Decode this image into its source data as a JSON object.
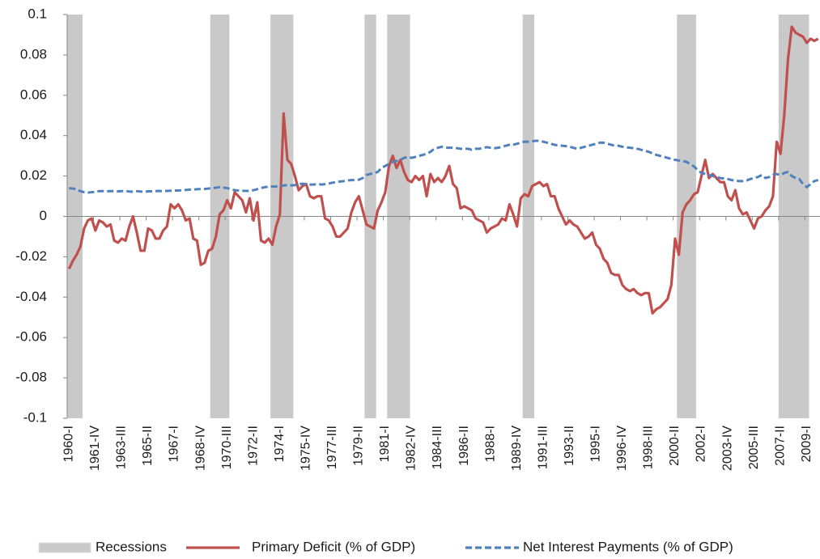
{
  "chart_data": {
    "type": "line",
    "categories": [
      "1960-I",
      null,
      null,
      null,
      null,
      null,
      null,
      "1961-IV",
      null,
      null,
      null,
      null,
      null,
      null,
      "1963-III",
      null,
      null,
      null,
      null,
      null,
      null,
      "1965-II",
      null,
      null,
      null,
      null,
      null,
      null,
      "1967-I",
      null,
      null,
      null,
      null,
      null,
      null,
      "1968-IV",
      null,
      null,
      null,
      null,
      null,
      null,
      "1970-III",
      null,
      null,
      null,
      null,
      null,
      null,
      "1972-II",
      null,
      null,
      null,
      null,
      null,
      null,
      "1974-I",
      null,
      null,
      null,
      null,
      null,
      null,
      "1975-IV",
      null,
      null,
      null,
      null,
      null,
      null,
      "1977-III",
      null,
      null,
      null,
      null,
      null,
      null,
      "1979-II",
      null,
      null,
      null,
      null,
      null,
      null,
      "1981-I",
      null,
      null,
      null,
      null,
      null,
      null,
      "1982-IV",
      null,
      null,
      null,
      null,
      null,
      null,
      "1984-III",
      null,
      null,
      null,
      null,
      null,
      null,
      "1986-II",
      null,
      null,
      null,
      null,
      null,
      null,
      "1988-I",
      null,
      null,
      null,
      null,
      null,
      null,
      "1989-IV",
      null,
      null,
      null,
      null,
      null,
      null,
      "1991-III",
      null,
      null,
      null,
      null,
      null,
      null,
      "1993-II",
      null,
      null,
      null,
      null,
      null,
      null,
      "1995-I",
      null,
      null,
      null,
      null,
      null,
      null,
      "1996-IV",
      null,
      null,
      null,
      null,
      null,
      null,
      "1998-III",
      null,
      null,
      null,
      null,
      null,
      null,
      "2000-II",
      null,
      null,
      null,
      null,
      null,
      null,
      "2002-I",
      null,
      null,
      null,
      null,
      null,
      null,
      "2003-IV",
      null,
      null,
      null,
      null,
      null,
      null,
      "2005-III",
      null,
      null,
      null,
      null,
      null,
      null,
      "2007-II",
      null,
      null,
      null,
      null,
      null,
      null,
      "2009-I",
      null,
      null,
      null
    ],
    "series": [
      {
        "name": "Recessions",
        "type": "bar",
        "color": "#c9c9c9",
        "values": [
          0.1,
          0.1,
          0.1,
          0.1,
          null,
          null,
          null,
          null,
          null,
          null,
          null,
          null,
          null,
          null,
          null,
          null,
          null,
          null,
          null,
          null,
          null,
          null,
          null,
          null,
          null,
          null,
          null,
          null,
          null,
          null,
          null,
          null,
          null,
          null,
          null,
          null,
          null,
          null,
          0.1,
          0.1,
          0.1,
          0.1,
          0.1,
          null,
          null,
          null,
          null,
          null,
          null,
          null,
          null,
          null,
          null,
          null,
          0.1,
          0.1,
          0.1,
          0.1,
          0.1,
          0.1,
          null,
          null,
          null,
          null,
          null,
          null,
          null,
          null,
          null,
          null,
          null,
          null,
          null,
          null,
          null,
          null,
          null,
          null,
          null,
          0.1,
          0.1,
          0.1,
          null,
          null,
          null,
          0.1,
          0.1,
          0.1,
          0.1,
          0.1,
          0.1,
          null,
          null,
          null,
          null,
          null,
          null,
          null,
          null,
          null,
          null,
          null,
          null,
          null,
          null,
          null,
          null,
          null,
          null,
          null,
          null,
          null,
          null,
          null,
          null,
          null,
          null,
          null,
          null,
          null,
          null,
          0.1,
          0.1,
          0.1,
          null,
          null,
          null,
          null,
          null,
          null,
          null,
          null,
          null,
          null,
          null,
          null,
          null,
          null,
          null,
          null,
          null,
          null,
          null,
          null,
          null,
          null,
          null,
          null,
          null,
          null,
          null,
          null,
          null,
          null,
          null,
          null,
          null,
          null,
          null,
          null,
          null,
          null,
          0.1,
          0.1,
          0.1,
          0.1,
          0.1,
          null,
          null,
          null,
          null,
          null,
          null,
          null,
          null,
          null,
          null,
          null,
          null,
          null,
          null,
          null,
          null,
          null,
          null,
          null,
          null,
          null,
          null,
          0.1,
          0.1,
          0.1,
          0.1,
          0.1,
          0.1,
          0.1,
          0.1,
          null,
          null,
          null
        ]
      },
      {
        "name": "Primary Deficit (% of GDP)",
        "type": "line",
        "color": "#c0504d",
        "dashed": false,
        "values": [
          -0.026,
          -0.022,
          -0.019,
          -0.015,
          -0.006,
          -0.002,
          -0.001,
          -0.007,
          -0.002,
          -0.003,
          -0.005,
          -0.004,
          -0.012,
          -0.013,
          -0.011,
          -0.012,
          -0.005,
          0,
          -0.008,
          -0.017,
          -0.017,
          -0.006,
          -0.007,
          -0.011,
          -0.011,
          -0.007,
          -0.005,
          0.006,
          0.004,
          0.006,
          0.003,
          -0.002,
          -0.001,
          -0.011,
          -0.012,
          -0.024,
          -0.023,
          -0.017,
          -0.016,
          -0.01,
          0.001,
          0.003,
          0.008,
          0.004,
          0.012,
          0.01,
          0.008,
          0.002,
          0.009,
          -0.002,
          0.007,
          -0.012,
          -0.013,
          -0.011,
          -0.014,
          -0.005,
          0.001,
          0.051,
          0.028,
          0.026,
          0.02,
          0.013,
          0.015,
          0.016,
          0.01,
          0.009,
          0.01,
          0.01,
          -0.001,
          -0.002,
          -0.005,
          -0.01,
          -0.01,
          -0.008,
          -0.006,
          0.002,
          0.007,
          0.01,
          0.003,
          -0.004,
          -0.005,
          -0.006,
          0.003,
          0.007,
          0.012,
          0.025,
          0.03,
          0.024,
          0.028,
          0.022,
          0.018,
          0.017,
          0.02,
          0.018,
          0.02,
          0.01,
          0.021,
          0.017,
          0.019,
          0.017,
          0.02,
          0.025,
          0.016,
          0.014,
          0.004,
          0.005,
          0.004,
          0.003,
          -0.001,
          -0.002,
          -0.003,
          -0.008,
          -0.006,
          -0.005,
          -0.004,
          -0.001,
          -0.002,
          0.006,
          0.001,
          -0.005,
          0.009,
          0.011,
          0.01,
          0.015,
          0.016,
          0.017,
          0.015,
          0.016,
          0.01,
          0.01,
          0.004,
          0,
          -0.004,
          -0.002,
          -0.004,
          -0.005,
          -0.008,
          -0.011,
          -0.01,
          -0.008,
          -0.014,
          -0.016,
          -0.021,
          -0.023,
          -0.028,
          -0.029,
          -0.029,
          -0.034,
          -0.036,
          -0.037,
          -0.036,
          -0.038,
          -0.039,
          -0.038,
          -0.038,
          -0.048,
          -0.046,
          -0.045,
          -0.043,
          -0.041,
          -0.034,
          -0.011,
          -0.019,
          0.002,
          0.006,
          0.008,
          0.011,
          0.012,
          0.02,
          0.028,
          0.019,
          0.021,
          0.019,
          0.017,
          0.017,
          0.01,
          0.008,
          0.013,
          0.004,
          0.001,
          0.002,
          -0.002,
          -0.006,
          -0.001,
          0,
          0.003,
          0.005,
          0.01,
          0.037,
          0.031,
          0.05,
          0.078,
          0.094,
          0.091,
          0.09,
          0.089,
          0.086,
          0.088,
          0.087,
          0.088
        ]
      },
      {
        "name": "Net Interest Payments (% of GDP)",
        "type": "line",
        "color": "#4f81bd",
        "dashed": true,
        "values": [
          0.014,
          0.0138,
          0.0135,
          0.0125,
          0.012,
          0.0118,
          0.012,
          0.0122,
          0.0125,
          0.0125,
          0.0124,
          0.0125,
          0.0125,
          0.0124,
          0.0125,
          0.0127,
          0.0123,
          0.0122,
          0.0125,
          0.0123,
          0.0122,
          0.0124,
          0.0124,
          0.0125,
          0.0126,
          0.0125,
          0.0126,
          0.0127,
          0.0128,
          0.0128,
          0.013,
          0.0131,
          0.0133,
          0.0133,
          0.0135,
          0.0136,
          0.0136,
          0.0138,
          0.014,
          0.0142,
          0.0145,
          0.0143,
          0.014,
          0.0135,
          0.013,
          0.0128,
          0.0127,
          0.0126,
          0.0126,
          0.013,
          0.0135,
          0.014,
          0.0145,
          0.0147,
          0.0148,
          0.0148,
          0.015,
          0.0153,
          0.0155,
          0.0154,
          0.0155,
          0.016,
          0.0162,
          0.016,
          0.0158,
          0.0158,
          0.016,
          0.0158,
          0.016,
          0.0163,
          0.0167,
          0.017,
          0.0173,
          0.0175,
          0.0178,
          0.018,
          0.018,
          0.0182,
          0.019,
          0.0205,
          0.021,
          0.0215,
          0.022,
          0.024,
          0.025,
          0.026,
          0.027,
          0.0275,
          0.028,
          0.029,
          0.0295,
          0.029,
          0.0295,
          0.03,
          0.0305,
          0.031,
          0.032,
          0.0335,
          0.034,
          0.0345,
          0.034,
          0.034,
          0.034,
          0.0338,
          0.0335,
          0.0335,
          0.0335,
          0.033,
          0.0335,
          0.0335,
          0.034,
          0.0343,
          0.034,
          0.0338,
          0.034,
          0.0345,
          0.035,
          0.0355,
          0.0355,
          0.036,
          0.0365,
          0.037,
          0.037,
          0.0372,
          0.0375,
          0.0374,
          0.037,
          0.0365,
          0.036,
          0.0355,
          0.035,
          0.035,
          0.0348,
          0.0345,
          0.034,
          0.0335,
          0.034,
          0.0345,
          0.035,
          0.0355,
          0.036,
          0.0365,
          0.0365,
          0.036,
          0.0355,
          0.035,
          0.035,
          0.0345,
          0.0342,
          0.034,
          0.0338,
          0.0335,
          0.033,
          0.0325,
          0.032,
          0.0312,
          0.0305,
          0.03,
          0.0295,
          0.029,
          0.0285,
          0.028,
          0.0277,
          0.0275,
          0.027,
          0.026,
          0.0248,
          0.023,
          0.0215,
          0.021,
          0.0205,
          0.02,
          0.0195,
          0.019,
          0.0188,
          0.0185,
          0.018,
          0.0178,
          0.0175,
          0.0175,
          0.0178,
          0.0185,
          0.019,
          0.0195,
          0.0205,
          0.019,
          0.0195,
          0.0205,
          0.021,
          0.0205,
          0.0215,
          0.022,
          0.02,
          0.019,
          0.0185,
          0.016,
          0.0145,
          0.016,
          0.0175,
          0.018
        ]
      }
    ],
    "ylim": [
      -0.1,
      0.1
    ],
    "yticks": [
      -0.1,
      -0.08,
      -0.06,
      -0.04,
      -0.02,
      0,
      0.02,
      0.04,
      0.06,
      0.08,
      0.1
    ],
    "grid": false,
    "legend": "bottom"
  }
}
